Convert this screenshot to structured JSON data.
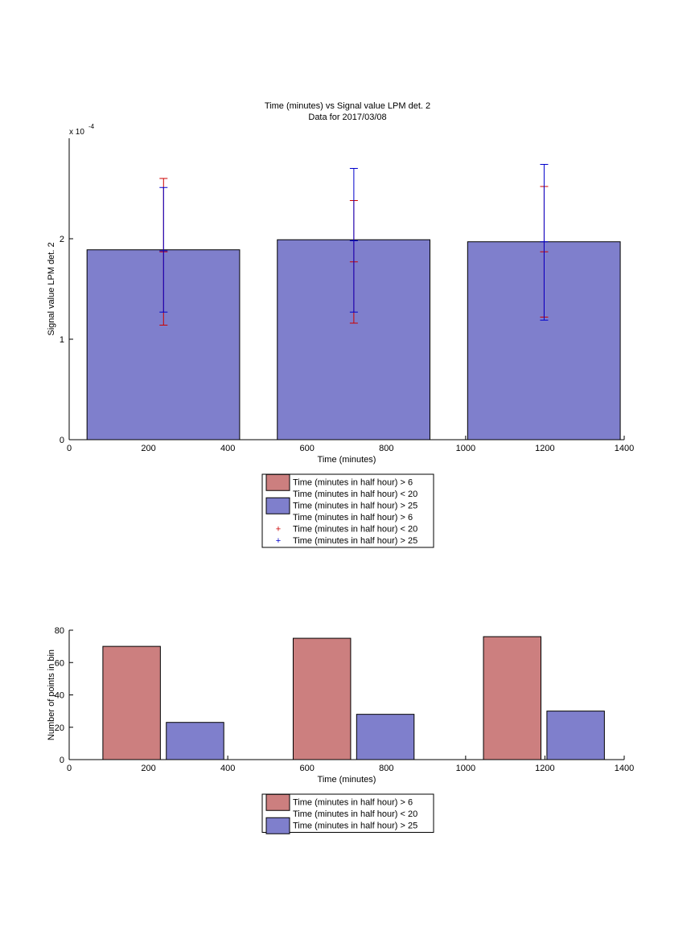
{
  "figure": {
    "title_line1": "Time (minutes) vs Signal value LPM det. 2",
    "title_line2": "Data for 2017/03/08"
  },
  "colors": {
    "series_a_bar": "#cc7f7f",
    "series_b_bar": "#7f7fcc",
    "series_a_err": "#cc0000",
    "series_b_err": "#0000cc"
  },
  "chart_data": [
    {
      "type": "bar",
      "subtype": "bar-with-errorbars",
      "title": "Time (minutes) vs Signal value LPM det. 2",
      "subtitle": "Data for 2017/03/08",
      "xlabel": "Time (minutes)",
      "ylabel": "Signal value LPM det. 2",
      "y_exponent_label": "x 10",
      "y_exponent": "-4",
      "xlim": [
        0,
        1400
      ],
      "ylim": [
        0,
        3.0
      ],
      "xticks": [
        0,
        200,
        400,
        600,
        800,
        1000,
        1200,
        1400
      ],
      "yticks": [
        0,
        1,
        2
      ],
      "bars": [
        {
          "x_start": 45,
          "x_end": 430,
          "value": 1.89
        },
        {
          "x_start": 525,
          "x_end": 910,
          "value": 1.99
        },
        {
          "x_start": 1005,
          "x_end": 1390,
          "value": 1.97
        }
      ],
      "errorbars": [
        {
          "series": "a",
          "x": 238,
          "center": 1.87,
          "low": 1.14,
          "high": 2.6
        },
        {
          "series": "b",
          "x": 238,
          "center": 1.88,
          "low": 1.27,
          "high": 2.51
        },
        {
          "series": "a",
          "x": 718,
          "center": 1.77,
          "low": 1.16,
          "high": 2.38
        },
        {
          "series": "b",
          "x": 718,
          "center": 1.98,
          "low": 1.27,
          "high": 2.7
        },
        {
          "series": "a",
          "x": 1198,
          "center": 1.87,
          "low": 1.22,
          "high": 2.52
        },
        {
          "series": "b",
          "x": 1198,
          "center": 1.97,
          "low": 1.19,
          "high": 2.74
        }
      ],
      "legend": [
        {
          "kind": "bar",
          "series": "a",
          "label": "Time (minutes in half hour) > 6"
        },
        {
          "kind": "text",
          "label": "Time (minutes in half hour) < 20"
        },
        {
          "kind": "bar",
          "series": "b",
          "label": "Time (minutes in half hour) > 25"
        },
        {
          "kind": "text",
          "label": "Time (minutes in half hour) > 6"
        },
        {
          "kind": "marker",
          "series": "a",
          "label": "Time (minutes in half hour) < 20"
        },
        {
          "kind": "marker",
          "series": "b",
          "label": "Time (minutes in half hour) > 25"
        }
      ],
      "legend_placement": "below"
    },
    {
      "type": "bar",
      "xlabel": "Time (minutes)",
      "ylabel": "Number of points in bin",
      "xlim": [
        0,
        1400
      ],
      "ylim": [
        0,
        80
      ],
      "xticks": [
        0,
        200,
        400,
        600,
        800,
        1000,
        1200,
        1400
      ],
      "yticks": [
        0,
        20,
        40,
        60,
        80
      ],
      "bars": [
        {
          "series": "a",
          "x_start": 85,
          "x_end": 230,
          "value": 70
        },
        {
          "series": "b",
          "x_start": 245,
          "x_end": 390,
          "value": 23
        },
        {
          "series": "a",
          "x_start": 565,
          "x_end": 710,
          "value": 75
        },
        {
          "series": "b",
          "x_start": 725,
          "x_end": 870,
          "value": 28
        },
        {
          "series": "a",
          "x_start": 1045,
          "x_end": 1190,
          "value": 76
        },
        {
          "series": "b",
          "x_start": 1205,
          "x_end": 1350,
          "value": 30
        }
      ],
      "legend": [
        {
          "kind": "bar",
          "series": "a",
          "label": "Time (minutes in half hour) > 6"
        },
        {
          "kind": "text",
          "label": "Time (minutes in half hour) < 20"
        },
        {
          "kind": "bar",
          "series": "b",
          "label": "Time (minutes in half hour) > 25"
        }
      ],
      "legend_placement": "below"
    }
  ]
}
